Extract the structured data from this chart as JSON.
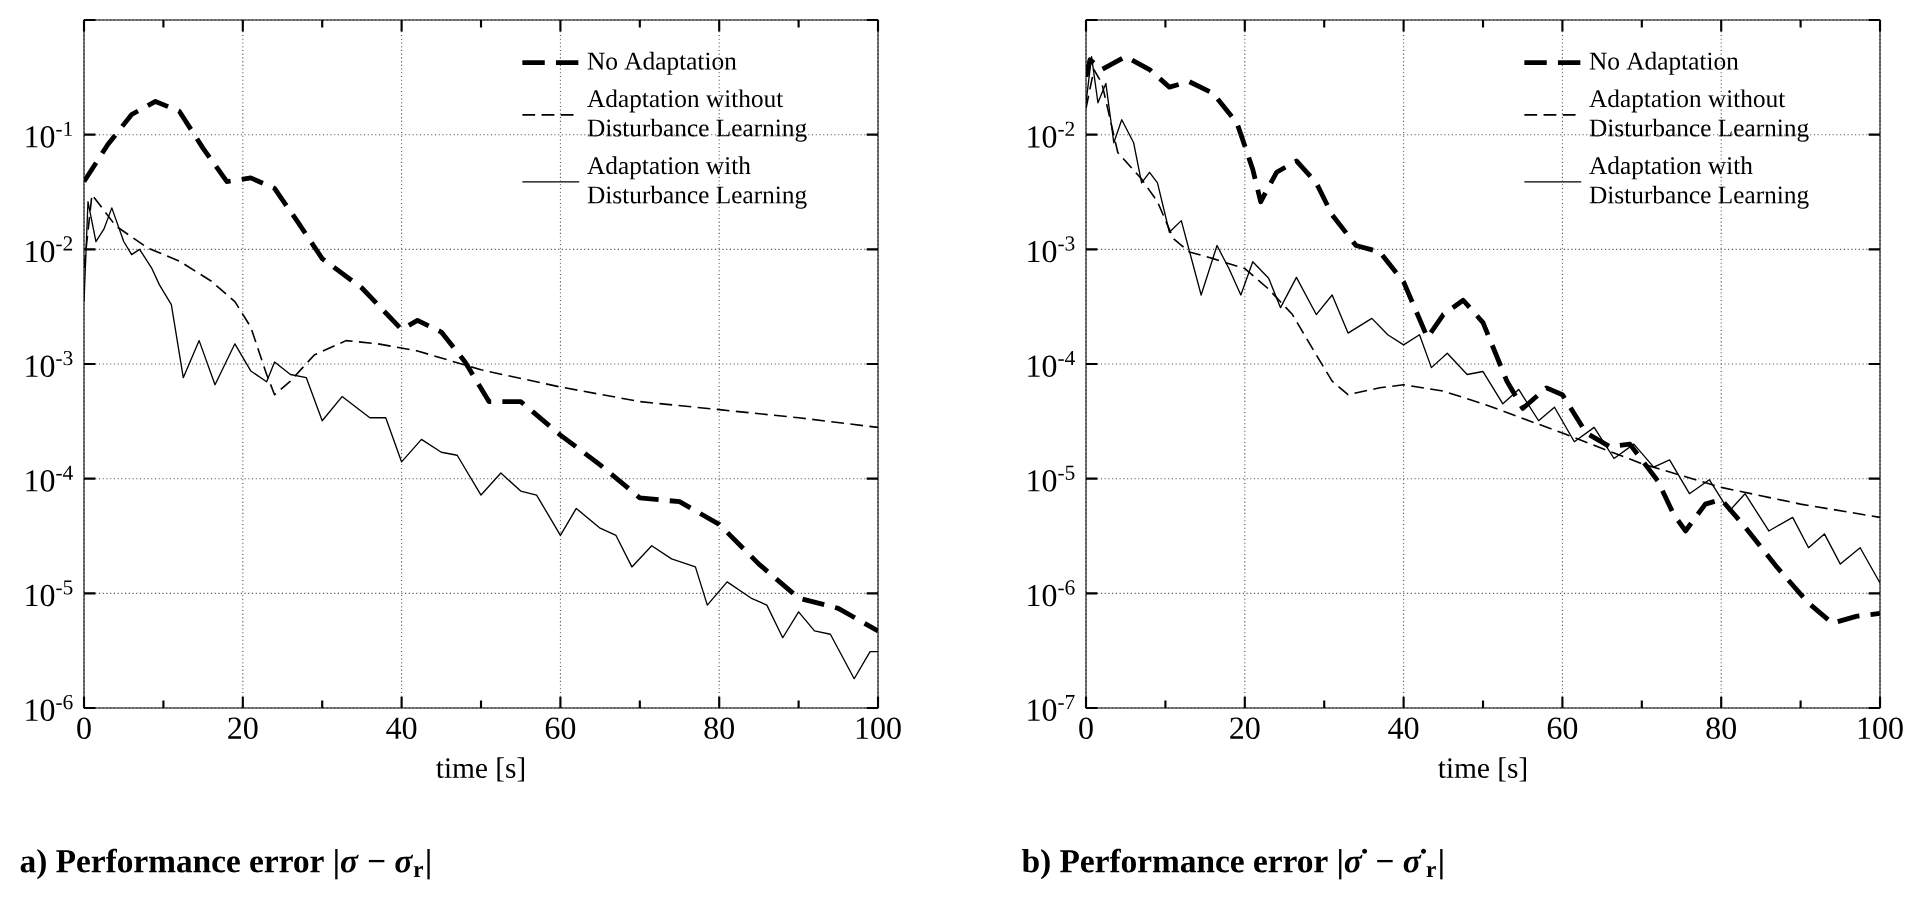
{
  "chart_data": [
    {
      "type": "line",
      "title": "a) Performance error |*σ* − *σ*$_{r}$|",
      "xlabel": "time [s]",
      "xlim": [
        0,
        100
      ],
      "xticks": [
        0,
        20,
        40,
        60,
        80,
        100
      ],
      "ylim": [
        1e-06,
        1
      ],
      "log": "y",
      "grid": true,
      "legend": "top right",
      "yticks": [
        {
          "value": 1e-06,
          "label": "10$^{-6}$"
        },
        {
          "value": 1e-05,
          "label": "10$^{-5}$"
        },
        {
          "value": 0.0001,
          "label": "10$^{-4}$"
        },
        {
          "value": 0.001,
          "label": "10$^{-3}$"
        },
        {
          "value": 0.01,
          "label": "10$^{-2}$"
        },
        {
          "value": 0.1,
          "label": "10$^{-1}$"
        },
        {
          "value": 1,
          "label": null
        }
      ],
      "series": [
        {
          "name": "No Adaptation",
          "color": "#000000",
          "line_style": "dashed",
          "x": [
            0,
            3,
            6,
            9,
            12,
            15,
            18,
            21,
            24,
            27,
            30,
            35,
            40,
            42,
            45,
            48,
            51,
            55,
            60,
            65,
            70,
            75,
            80,
            85,
            90,
            95,
            100
          ],
          "values": [
            0.039,
            0.082,
            0.15,
            0.195,
            0.16,
            0.076,
            0.039,
            0.042,
            0.034,
            0.017,
            0.0083,
            0.0046,
            0.002,
            0.0024,
            0.0019,
            0.00104,
            0.00047,
            0.00047,
            0.00024,
            0.000132,
            6.8e-05,
            6.3e-05,
            4e-05,
            1.8e-05,
            9.1e-06,
            7.4e-06,
            4.7e-06
          ]
        },
        {
          "name": "Adaptation without Disturbance Learning",
          "color": "#000000",
          "line_style": "dashed",
          "x": [
            0,
            1,
            4,
            8,
            12,
            16,
            19,
            21,
            23,
            24,
            26,
            29,
            33,
            37,
            42,
            50,
            60,
            70,
            80,
            90,
            100
          ],
          "values": [
            0.0069,
            0.03,
            0.016,
            0.0103,
            0.0079,
            0.0053,
            0.0035,
            0.0021,
            0.00081,
            0.00054,
            0.00071,
            0.0012,
            0.0016,
            0.0015,
            0.0013,
            0.00089,
            0.00063,
            0.00047,
            0.0004,
            0.00034,
            0.00028
          ]
        },
        {
          "name": "Adaptation with Disturbance Learning",
          "color": "#000000",
          "line_style": "solid",
          "x": [
            0,
            0.5,
            1.5,
            2.5,
            3.5,
            5,
            6,
            7,
            8.5,
            9.5,
            11,
            12.5,
            14.5,
            16.5,
            19,
            21,
            23,
            24,
            26,
            28,
            30,
            32.5,
            36,
            38,
            40,
            42.5,
            45,
            47,
            50,
            52.5,
            55,
            57,
            60,
            62,
            65,
            67,
            69,
            71.5,
            74,
            77,
            78.5,
            81,
            84,
            86,
            88,
            90,
            92,
            94,
            97,
            99,
            100
          ],
          "values": [
            0.0035,
            0.026,
            0.0117,
            0.015,
            0.023,
            0.0117,
            0.009,
            0.01,
            0.0069,
            0.0049,
            0.0033,
            0.00076,
            0.0016,
            0.00066,
            0.0015,
            0.00087,
            0.0007,
            0.00104,
            0.00081,
            0.00076,
            0.00032,
            0.00052,
            0.00034,
            0.00034,
            0.00014,
            0.00022,
            0.00017,
            0.00016,
            7.2e-05,
            0.000112,
            7.8e-05,
            7.2e-05,
            3.2e-05,
            5.5e-05,
            3.7e-05,
            3.2e-05,
            1.7e-05,
            2.6e-05,
            2e-05,
            1.7e-05,
            7.9e-06,
            1.26e-05,
            9.1e-06,
            7.9e-06,
            4.1e-06,
            6.9e-06,
            4.7e-06,
            4.4e-06,
            1.8e-06,
            3.1e-06,
            3.1e-06
          ]
        }
      ]
    },
    {
      "type": "line",
      "title": "b) Performance error |*σ̇* − *σ̇*$_{r}$|",
      "xlabel": "time [s]",
      "xlim": [
        0,
        100
      ],
      "xticks": [
        0,
        20,
        40,
        60,
        80,
        100
      ],
      "ylim": [
        1e-07,
        0.1
      ],
      "log": "y",
      "grid": true,
      "legend": "top right",
      "yticks": [
        {
          "value": 1e-07,
          "label": "10$^{-7}$"
        },
        {
          "value": 1e-06,
          "label": "10$^{-6}$"
        },
        {
          "value": 1e-05,
          "label": "10$^{-5}$"
        },
        {
          "value": 0.0001,
          "label": "10$^{-4}$"
        },
        {
          "value": 0.001,
          "label": "10$^{-3}$"
        },
        {
          "value": 0.01,
          "label": "10$^{-2}$"
        },
        {
          "value": 0.1,
          "label": null
        }
      ],
      "series": [
        {
          "name": "No Adaptation",
          "color": "#000000",
          "line_style": "dashed",
          "x": [
            0,
            0.5,
            2,
            5,
            8,
            10.5,
            13,
            16,
            19,
            21,
            22,
            24,
            26.5,
            29,
            31,
            34,
            37,
            40,
            43,
            45,
            47.5,
            50,
            53,
            55,
            58,
            60,
            63,
            66,
            68.5,
            72,
            74,
            75.5,
            78,
            80,
            83,
            87,
            91,
            94,
            97,
            100
          ],
          "values": [
            0.032,
            0.045,
            0.037,
            0.048,
            0.037,
            0.026,
            0.029,
            0.023,
            0.0127,
            0.005,
            0.0026,
            0.0047,
            0.0059,
            0.0038,
            0.002,
            0.00108,
            0.00095,
            0.00052,
            0.00017,
            0.00027,
            0.00036,
            0.00023,
            7.1e-05,
            4.1e-05,
            6.2e-05,
            5.4e-05,
            2.5e-05,
            1.9e-05,
            2e-05,
            9.6e-06,
            4.9e-06,
            3.5e-06,
            6e-06,
            6.6e-06,
            3.8e-06,
            1.7e-06,
            8.2e-07,
            5.5e-07,
            6.3e-07,
            6.7e-07
          ]
        },
        {
          "name": "Adaptation without Disturbance Learning",
          "color": "#000000",
          "line_style": "dashed",
          "x": [
            0,
            1,
            2,
            4,
            7,
            9,
            11,
            13,
            16,
            20,
            23,
            26,
            29,
            31,
            33,
            37,
            40,
            45,
            50,
            60,
            70,
            80,
            90,
            100
          ],
          "values": [
            0.017,
            0.037,
            0.028,
            0.007,
            0.0041,
            0.0026,
            0.00124,
            0.00095,
            0.00083,
            0.00068,
            0.00045,
            0.00027,
            0.00012,
            7.1e-05,
            5.4e-05,
            6.2e-05,
            6.6e-05,
            5.8e-05,
            4.5e-05,
            2.5e-05,
            1.35e-05,
            8.4e-06,
            6e-06,
            4.6e-06
          ]
        },
        {
          "name": "Adaptation with Disturbance Learning",
          "color": "#000000",
          "line_style": "solid",
          "x": [
            0,
            0.7,
            1.5,
            2.5,
            3.5,
            4.5,
            6,
            7,
            8,
            9,
            10.5,
            12,
            14.5,
            16.5,
            18,
            19.5,
            21,
            23,
            24.5,
            26.5,
            29,
            31,
            33,
            36,
            38,
            40,
            42,
            43.5,
            45.5,
            48,
            50,
            52.5,
            54.5,
            57,
            59,
            61.5,
            64,
            66.5,
            69,
            71.5,
            73.5,
            76,
            78.5,
            81,
            83,
            86,
            89,
            91,
            93,
            95,
            97.5,
            100
          ],
          "values": [
            0.019,
            0.048,
            0.019,
            0.028,
            0.0085,
            0.0135,
            0.0085,
            0.0038,
            0.0047,
            0.0038,
            0.00141,
            0.00178,
            0.0004,
            0.00108,
            0.00068,
            0.0004,
            0.00078,
            0.00056,
            0.00031,
            0.00057,
            0.00027,
            0.0004,
            0.000186,
            0.00025,
            0.00018,
            0.000147,
            0.00018,
            9.3e-05,
            0.000124,
            8.1e-05,
            8.6e-05,
            4.5e-05,
            6e-05,
            3.2e-05,
            4.2e-05,
            2.1e-05,
            2.8e-05,
            1.5e-05,
            2e-05,
            1.26e-05,
            1.46e-05,
            7.4e-06,
            9.8e-06,
            5.2e-06,
            7.4e-06,
            3.5e-06,
            4.6e-06,
            2.5e-06,
            3.3e-06,
            1.8e-06,
            2.5e-06,
            1.23e-06
          ]
        }
      ]
    }
  ]
}
